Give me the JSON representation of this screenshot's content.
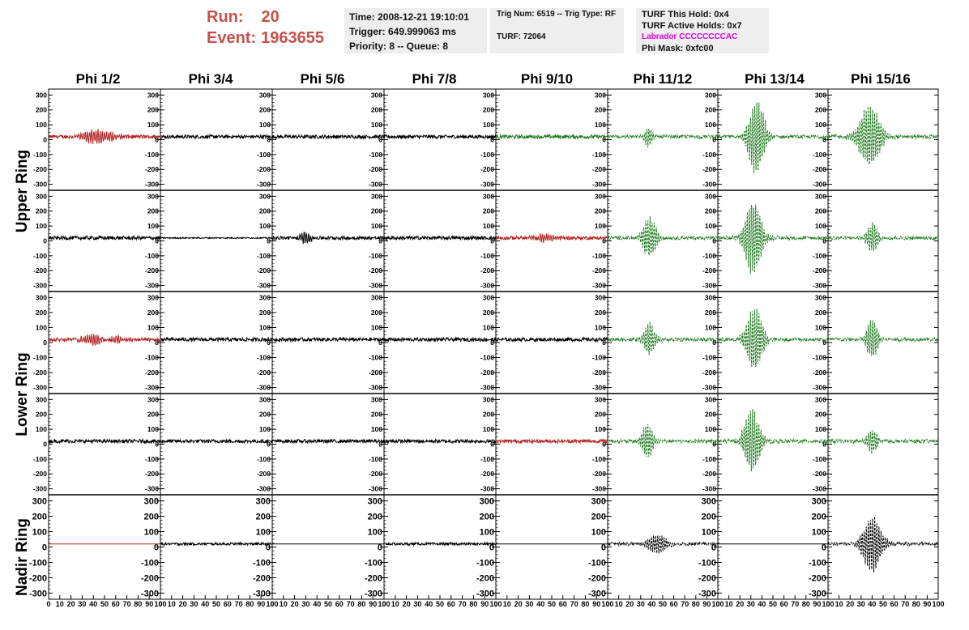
{
  "header": {
    "run_label": "Run:",
    "run_value": "20",
    "event_label": "Event:",
    "event_value": "1963655",
    "time": "Time: 2008-12-21 19:10:01",
    "trigger": "Trigger: 649.999063 ms",
    "priority": "Priority: 8 -- Queue: 8",
    "trig_num": "Trig Num: 6519 -- Trig Type: RF",
    "turf": "TURF: 72064",
    "turf_this_hold": "TURF This Hold: 0x4",
    "turf_active_holds": "TURF Active Holds: 0x7",
    "labrador": "Labrador CCCCCCCCAC",
    "phi_mask": "Phi Mask: 0xfc00",
    "colors": {
      "run_text": "#c8504b",
      "labrador": "#e000e0",
      "infobox_bg": "#eeeeee"
    }
  },
  "columns": [
    "Phi 1/2",
    "Phi 3/4",
    "Phi 5/6",
    "Phi 7/8",
    "Phi 9/10",
    "Phi 11/12",
    "Phi 13/14",
    "Phi 15/16"
  ],
  "rings": [
    "Upper Ring",
    "Lower Ring",
    "Nadir Ring"
  ],
  "axes": {
    "y_ticks_small": [
      "300",
      "200",
      "100",
      "0",
      "-100",
      "-200",
      "-300"
    ],
    "y_ticks_large": [
      "300",
      "200",
      "100",
      "0",
      "-100",
      "-200",
      "-300"
    ],
    "x_ticks": [
      "0",
      "10",
      "20",
      "30",
      "40",
      "50",
      "60",
      "70",
      "80",
      "90",
      "100"
    ]
  },
  "chart_data": {
    "type": "line",
    "grid": false,
    "x_range": [
      0,
      100
    ],
    "y_range": [
      -340,
      340
    ],
    "colors": {
      "normal": "#000000",
      "triggered": "#b22222",
      "phi_masked": "#1f7a1f"
    },
    "waveforms": [
      {
        "row": 0,
        "col": 0,
        "color": "triggered",
        "style": "solid",
        "noise": 12,
        "burst": [
          [
            40,
            45,
            8
          ],
          [
            55,
            25,
            7
          ]
        ]
      },
      {
        "row": 0,
        "col": 1,
        "color": "normal",
        "style": "solid",
        "noise": 12,
        "burst": []
      },
      {
        "row": 0,
        "col": 2,
        "color": "normal",
        "style": "solid",
        "noise": 12,
        "burst": []
      },
      {
        "row": 0,
        "col": 3,
        "color": "normal",
        "style": "solid",
        "noise": 12,
        "burst": []
      },
      {
        "row": 0,
        "col": 4,
        "color": "phi_masked",
        "style": "solid",
        "noise": 12,
        "burst": []
      },
      {
        "row": 0,
        "col": 5,
        "color": "phi_masked",
        "style": "dashed",
        "noise": 12,
        "burst": [
          [
            37,
            70,
            3
          ]
        ]
      },
      {
        "row": 0,
        "col": 6,
        "color": "phi_masked",
        "style": "dashed",
        "noise": 12,
        "burst": [
          [
            35,
            270,
            6
          ]
        ]
      },
      {
        "row": 0,
        "col": 7,
        "color": "phi_masked",
        "style": "dashed",
        "noise": 12,
        "burst": [
          [
            38,
            220,
            8
          ]
        ]
      },
      {
        "row": 1,
        "col": 0,
        "color": "normal",
        "style": "solid",
        "noise": 12,
        "burst": []
      },
      {
        "row": 1,
        "col": 1,
        "color": "normal",
        "style": "solid",
        "noise": 4,
        "burst": []
      },
      {
        "row": 1,
        "col": 2,
        "color": "normal",
        "style": "solid",
        "noise": 12,
        "burst": [
          [
            30,
            40,
            4
          ]
        ]
      },
      {
        "row": 1,
        "col": 3,
        "color": "normal",
        "style": "solid",
        "noise": 12,
        "burst": []
      },
      {
        "row": 1,
        "col": 4,
        "color": "triggered",
        "style": "solid",
        "noise": 12,
        "burst": [
          [
            45,
            30,
            8
          ]
        ]
      },
      {
        "row": 1,
        "col": 5,
        "color": "phi_masked",
        "style": "dashed",
        "noise": 12,
        "burst": [
          [
            38,
            150,
            5
          ]
        ]
      },
      {
        "row": 1,
        "col": 6,
        "color": "phi_masked",
        "style": "dashed",
        "noise": 12,
        "burst": [
          [
            32,
            280,
            6
          ]
        ]
      },
      {
        "row": 1,
        "col": 7,
        "color": "phi_masked",
        "style": "dashed",
        "noise": 12,
        "burst": [
          [
            40,
            110,
            4
          ]
        ]
      },
      {
        "row": 2,
        "col": 0,
        "color": "triggered",
        "style": "solid",
        "noise": 12,
        "burst": [
          [
            40,
            40,
            8
          ],
          [
            60,
            25,
            8
          ]
        ]
      },
      {
        "row": 2,
        "col": 1,
        "color": "normal",
        "style": "solid",
        "noise": 12,
        "burst": []
      },
      {
        "row": 2,
        "col": 2,
        "color": "normal",
        "style": "solid",
        "noise": 12,
        "burst": []
      },
      {
        "row": 2,
        "col": 3,
        "color": "normal",
        "style": "solid",
        "noise": 12,
        "burst": []
      },
      {
        "row": 2,
        "col": 4,
        "color": "normal",
        "style": "solid",
        "noise": 12,
        "burst": []
      },
      {
        "row": 2,
        "col": 5,
        "color": "phi_masked",
        "style": "dashed",
        "noise": 12,
        "burst": [
          [
            38,
            120,
            4
          ]
        ]
      },
      {
        "row": 2,
        "col": 6,
        "color": "phi_masked",
        "style": "dashed",
        "noise": 12,
        "burst": [
          [
            33,
            240,
            6
          ]
        ]
      },
      {
        "row": 2,
        "col": 7,
        "color": "phi_masked",
        "style": "dashed",
        "noise": 12,
        "burst": [
          [
            40,
            150,
            4
          ]
        ]
      },
      {
        "row": 3,
        "col": 0,
        "color": "normal",
        "style": "solid",
        "noise": 12,
        "burst": []
      },
      {
        "row": 3,
        "col": 1,
        "color": "normal",
        "style": "solid",
        "noise": 12,
        "burst": []
      },
      {
        "row": 3,
        "col": 2,
        "color": "normal",
        "style": "solid",
        "noise": 12,
        "burst": []
      },
      {
        "row": 3,
        "col": 3,
        "color": "normal",
        "style": "solid",
        "noise": 12,
        "burst": []
      },
      {
        "row": 3,
        "col": 4,
        "color": "triggered",
        "style": "solid",
        "noise": 12,
        "burst": []
      },
      {
        "row": 3,
        "col": 5,
        "color": "phi_masked",
        "style": "dashed",
        "noise": 12,
        "burst": [
          [
            36,
            130,
            4
          ]
        ]
      },
      {
        "row": 3,
        "col": 6,
        "color": "phi_masked",
        "style": "dashed",
        "noise": 12,
        "burst": [
          [
            31,
            230,
            6
          ]
        ]
      },
      {
        "row": 3,
        "col": 7,
        "color": "phi_masked",
        "style": "dashed",
        "noise": 12,
        "burst": [
          [
            40,
            90,
            4
          ]
        ]
      },
      {
        "row": 4,
        "col": 0,
        "color": "triggered",
        "style": "solid",
        "noise": 0,
        "burst": []
      },
      {
        "row": 4,
        "col": 1,
        "color": "normal",
        "style": "solid",
        "noise": 8,
        "burst": []
      },
      {
        "row": 4,
        "col": 2,
        "color": "normal",
        "style": "solid",
        "noise": 0,
        "burst": []
      },
      {
        "row": 4,
        "col": 3,
        "color": "normal",
        "style": "solid",
        "noise": 8,
        "burst": []
      },
      {
        "row": 4,
        "col": 4,
        "color": "normal",
        "style": "solid",
        "noise": 0,
        "burst": []
      },
      {
        "row": 4,
        "col": 5,
        "color": "normal",
        "style": "dashed",
        "noise": 10,
        "burst": [
          [
            45,
            70,
            7
          ]
        ]
      },
      {
        "row": 4,
        "col": 6,
        "color": "normal",
        "style": "solid",
        "noise": 0,
        "burst": []
      },
      {
        "row": 4,
        "col": 7,
        "color": "normal",
        "style": "dashed",
        "noise": 10,
        "burst": [
          [
            40,
            200,
            7
          ]
        ]
      }
    ]
  }
}
